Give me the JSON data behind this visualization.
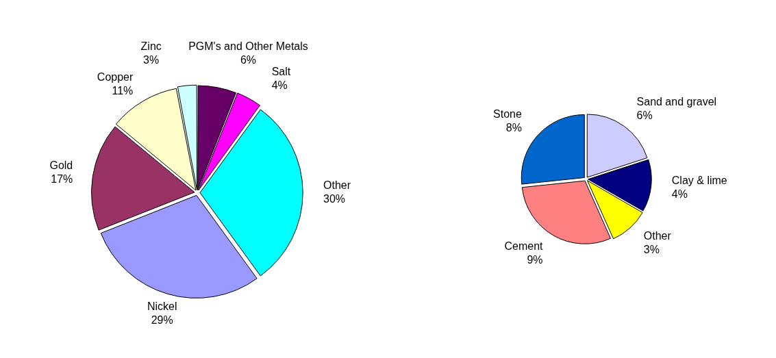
{
  "chart_data": [
    {
      "type": "pie",
      "categories": [
        "PGM's and Other Metals",
        "Salt",
        "Other",
        "Nickel",
        "Gold",
        "Copper",
        "Zinc"
      ],
      "values": [
        6,
        4,
        30,
        29,
        17,
        11,
        3
      ],
      "value_labels": [
        "6%",
        "4%",
        "30%",
        "29%",
        "17%",
        "11%",
        "3%"
      ],
      "colors": [
        "#660066",
        "#ff00ff",
        "#00ffff",
        "#9999ff",
        "#993366",
        "#ffffcc",
        "#ccffff"
      ],
      "legend": false
    },
    {
      "type": "pie",
      "categories": [
        "Sand and gravel",
        "Clay & lime",
        "Other",
        "Cement",
        "Stone"
      ],
      "values": [
        6,
        4,
        3,
        9,
        8
      ],
      "value_labels": [
        "6%",
        "4%",
        "3%",
        "9%",
        "8%"
      ],
      "colors": [
        "#ccccff",
        "#000080",
        "#ffff00",
        "#ff8080",
        "#0066cc"
      ],
      "legend": false
    }
  ]
}
